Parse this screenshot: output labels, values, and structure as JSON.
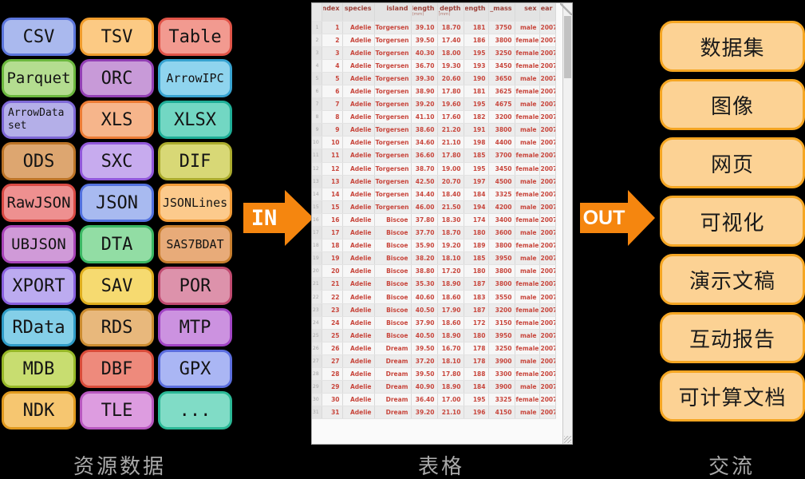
{
  "diagram": {
    "in_label": "IN",
    "out_label": "OUT",
    "arrow_color": "#f5860f",
    "captions": {
      "left": "资源数据",
      "middle": "表格",
      "right": "交流"
    }
  },
  "formats": [
    {
      "label": "CSV",
      "fill": "#aab9ee",
      "border": "#5b75db"
    },
    {
      "label": "TSV",
      "fill": "#fcca84",
      "border": "#f09c2c"
    },
    {
      "label": "Table",
      "fill": "#f29a90",
      "border": "#e05448"
    },
    {
      "label": "Parquet",
      "fill": "#b4dd90",
      "border": "#6cb83e"
    },
    {
      "label": "ORC",
      "fill": "#c89ad8",
      "border": "#9340b5"
    },
    {
      "label": "ArrowIPC",
      "fill": "#8fd4ee",
      "border": "#38a3d1"
    },
    {
      "label": "ArrowDataset",
      "fill": "#b4afe8",
      "border": "#7e68d6"
    },
    {
      "label": "XLS",
      "fill": "#f6b58b",
      "border": "#ec7c35"
    },
    {
      "label": "XLSX",
      "fill": "#72d7c3",
      "border": "#1fae97"
    },
    {
      "label": "ODS",
      "fill": "#dda670",
      "border": "#bc7427"
    },
    {
      "label": "SXC",
      "fill": "#c7abee",
      "border": "#9158da"
    },
    {
      "label": "DIF",
      "fill": "#d8d876",
      "border": "#abab2e"
    },
    {
      "label": "RawJSON",
      "fill": "#ee9090",
      "border": "#d94a44"
    },
    {
      "label": "JSON",
      "fill": "#a8baf0",
      "border": "#5271de"
    },
    {
      "label": "JSONLines",
      "fill": "#fcca8c",
      "border": "#f09a36"
    },
    {
      "label": "UBJSON",
      "fill": "#d09ad8",
      "border": "#a844b8"
    },
    {
      "label": "DTA",
      "fill": "#92dda4",
      "border": "#3cb864"
    },
    {
      "label": "SAS7BDAT",
      "fill": "#e8ab79",
      "border": "#c87e2e"
    },
    {
      "label": "XPORT",
      "fill": "#bcabf0",
      "border": "#8860de"
    },
    {
      "label": "SAV",
      "fill": "#f6da70",
      "border": "#dfae1e"
    },
    {
      "label": "POR",
      "fill": "#dd92ab",
      "border": "#c04a70"
    },
    {
      "label": "RData",
      "fill": "#84cfe8",
      "border": "#2f9bc7"
    },
    {
      "label": "RDS",
      "fill": "#e8b87c",
      "border": "#cc8c30"
    },
    {
      "label": "MTP",
      "fill": "#cc92e0",
      "border": "#a144c4"
    },
    {
      "label": "MDB",
      "fill": "#c8dd70",
      "border": "#97b827"
    },
    {
      "label": "DBF",
      "fill": "#ee8a7c",
      "border": "#d94c3a"
    },
    {
      "label": "GPX",
      "fill": "#aab6f4",
      "border": "#5b6ede"
    },
    {
      "label": "NDK",
      "fill": "#f6c670",
      "border": "#e0991e"
    },
    {
      "label": "TLE",
      "fill": "#dd9ce0",
      "border": "#b858c0"
    },
    {
      "label": "...",
      "fill": "#80dcc6",
      "border": "#2bb896"
    }
  ],
  "outputs": {
    "style": {
      "fill": "#fcd294",
      "border": "#f5a623"
    },
    "items": [
      "数据集",
      "图像",
      "网页",
      "可视化",
      "演示文稿",
      "互动报告",
      "可计算文档"
    ]
  },
  "table": {
    "columns": [
      {
        "name": "index",
        "width": 26
      },
      {
        "name": "species",
        "width": 40
      },
      {
        "name": "island",
        "width": 46
      },
      {
        "name": "bill_length",
        "unit": "(mm)",
        "width": 33
      },
      {
        "name": "bill_depth",
        "unit": "(mm)",
        "width": 33
      },
      {
        "name": "flipper_length",
        "width": 31
      },
      {
        "name": "body_mass",
        "width": 33
      },
      {
        "name": "sex",
        "width": 31
      },
      {
        "name": "year",
        "width": 20
      }
    ],
    "gutter_width": 12,
    "rows": [
      [
        "1",
        "Adelie",
        "Torgersen",
        "39.10",
        "18.70",
        "181",
        "3750",
        "male",
        "2007"
      ],
      [
        "2",
        "Adelie",
        "Torgersen",
        "39.50",
        "17.40",
        "186",
        "3800",
        "female",
        "2007"
      ],
      [
        "3",
        "Adelie",
        "Torgersen",
        "40.30",
        "18.00",
        "195",
        "3250",
        "female",
        "2007"
      ],
      [
        "4",
        "Adelie",
        "Torgersen",
        "36.70",
        "19.30",
        "193",
        "3450",
        "female",
        "2007"
      ],
      [
        "5",
        "Adelie",
        "Torgersen",
        "39.30",
        "20.60",
        "190",
        "3650",
        "male",
        "2007"
      ],
      [
        "6",
        "Adelie",
        "Torgersen",
        "38.90",
        "17.80",
        "181",
        "3625",
        "female",
        "2007"
      ],
      [
        "7",
        "Adelie",
        "Torgersen",
        "39.20",
        "19.60",
        "195",
        "4675",
        "male",
        "2007"
      ],
      [
        "8",
        "Adelie",
        "Torgersen",
        "41.10",
        "17.60",
        "182",
        "3200",
        "female",
        "2007"
      ],
      [
        "9",
        "Adelie",
        "Torgersen",
        "38.60",
        "21.20",
        "191",
        "3800",
        "male",
        "2007"
      ],
      [
        "10",
        "Adelie",
        "Torgersen",
        "34.60",
        "21.10",
        "198",
        "4400",
        "male",
        "2007"
      ],
      [
        "11",
        "Adelie",
        "Torgersen",
        "36.60",
        "17.80",
        "185",
        "3700",
        "female",
        "2007"
      ],
      [
        "12",
        "Adelie",
        "Torgersen",
        "38.70",
        "19.00",
        "195",
        "3450",
        "female",
        "2007"
      ],
      [
        "13",
        "Adelie",
        "Torgersen",
        "42.50",
        "20.70",
        "197",
        "4500",
        "male",
        "2007"
      ],
      [
        "14",
        "Adelie",
        "Torgersen",
        "34.40",
        "18.40",
        "184",
        "3325",
        "female",
        "2007"
      ],
      [
        "15",
        "Adelie",
        "Torgersen",
        "46.00",
        "21.50",
        "194",
        "4200",
        "male",
        "2007"
      ],
      [
        "16",
        "Adelie",
        "Biscoe",
        "37.80",
        "18.30",
        "174",
        "3400",
        "female",
        "2007"
      ],
      [
        "17",
        "Adelie",
        "Biscoe",
        "37.70",
        "18.70",
        "180",
        "3600",
        "male",
        "2007"
      ],
      [
        "18",
        "Adelie",
        "Biscoe",
        "35.90",
        "19.20",
        "189",
        "3800",
        "female",
        "2007"
      ],
      [
        "19",
        "Adelie",
        "Biscoe",
        "38.20",
        "18.10",
        "185",
        "3950",
        "male",
        "2007"
      ],
      [
        "20",
        "Adelie",
        "Biscoe",
        "38.80",
        "17.20",
        "180",
        "3800",
        "male",
        "2007"
      ],
      [
        "21",
        "Adelie",
        "Biscoe",
        "35.30",
        "18.90",
        "187",
        "3800",
        "female",
        "2007"
      ],
      [
        "22",
        "Adelie",
        "Biscoe",
        "40.60",
        "18.60",
        "183",
        "3550",
        "male",
        "2007"
      ],
      [
        "23",
        "Adelie",
        "Biscoe",
        "40.50",
        "17.90",
        "187",
        "3200",
        "female",
        "2007"
      ],
      [
        "24",
        "Adelie",
        "Biscoe",
        "37.90",
        "18.60",
        "172",
        "3150",
        "female",
        "2007"
      ],
      [
        "25",
        "Adelie",
        "Biscoe",
        "40.50",
        "18.90",
        "180",
        "3950",
        "male",
        "2007"
      ],
      [
        "26",
        "Adelie",
        "Dream",
        "39.50",
        "16.70",
        "178",
        "3250",
        "female",
        "2007"
      ],
      [
        "27",
        "Adelie",
        "Dream",
        "37.20",
        "18.10",
        "178",
        "3900",
        "male",
        "2007"
      ],
      [
        "28",
        "Adelie",
        "Dream",
        "39.50",
        "17.80",
        "188",
        "3300",
        "female",
        "2007"
      ],
      [
        "29",
        "Adelie",
        "Dream",
        "40.90",
        "18.90",
        "184",
        "3900",
        "male",
        "2007"
      ],
      [
        "30",
        "Adelie",
        "Dream",
        "36.40",
        "17.00",
        "195",
        "3325",
        "female",
        "2007"
      ],
      [
        "31",
        "Adelie",
        "Dream",
        "39.20",
        "21.10",
        "196",
        "4150",
        "male",
        "2007"
      ]
    ]
  }
}
